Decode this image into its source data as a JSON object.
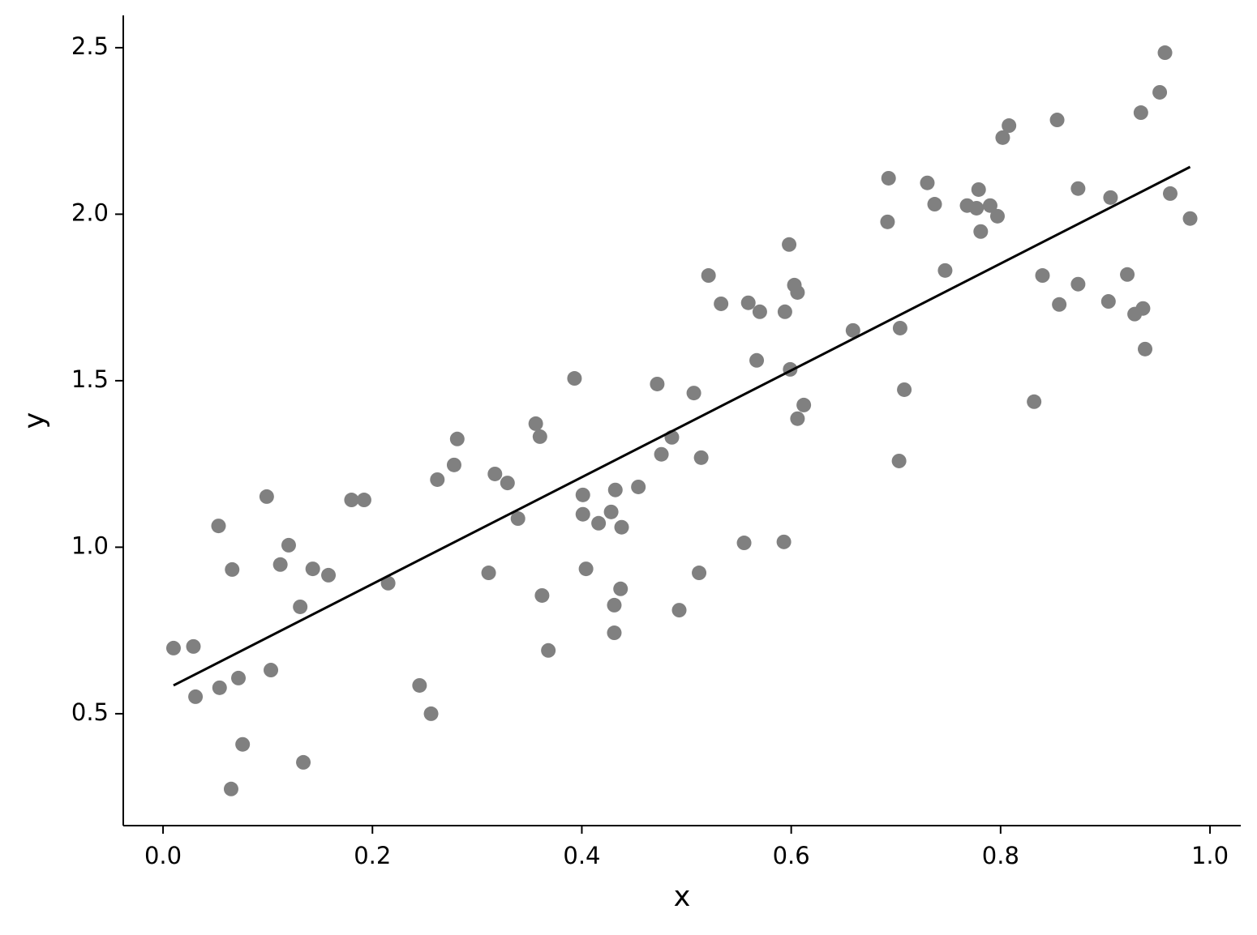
{
  "chart_data": {
    "type": "scatter",
    "xlabel": "x",
    "ylabel": "y",
    "xlim": [
      -0.038,
      1.0294
    ],
    "ylim": [
      0.164,
      2.597
    ],
    "xticks": [
      {
        "value": 0,
        "label": "0.0"
      },
      0.2,
      0.4,
      0.6,
      0.8,
      {
        "value": 1,
        "label": "1.0"
      }
    ],
    "yticks": [
      0.5,
      {
        "value": 1,
        "label": "1.0"
      },
      1.5,
      {
        "value": 2,
        "label": "2.0"
      },
      2.5
    ],
    "series": [
      {
        "type": "scatter",
        "color": "#808080",
        "x": [
          0.01,
          0.029,
          0.031,
          0.053,
          0.054,
          0.066,
          0.065,
          0.072,
          0.076,
          0.099,
          0.103,
          0.112,
          0.12,
          0.131,
          0.134,
          0.143,
          0.158,
          0.18,
          0.192,
          0.215,
          0.245,
          0.256,
          0.262,
          0.278,
          0.281,
          0.311,
          0.317,
          0.329,
          0.339,
          0.356,
          0.36,
          0.362,
          0.368,
          0.393,
          0.401,
          0.401,
          0.404,
          0.416,
          0.428,
          0.431,
          0.431,
          0.432,
          0.437,
          0.438,
          0.454,
          0.472,
          0.476,
          0.486,
          0.493,
          0.507,
          0.512,
          0.514,
          0.521,
          0.533,
          0.555,
          0.559,
          0.567,
          0.57,
          0.593,
          0.594,
          0.598,
          0.599,
          0.603,
          0.606,
          0.606,
          0.612,
          0.659,
          0.692,
          0.693,
          0.703,
          0.704,
          0.708,
          0.73,
          0.737,
          0.747,
          0.768,
          0.777,
          0.779,
          0.781,
          0.79,
          0.797,
          0.802,
          0.808,
          0.832,
          0.84,
          0.854,
          0.856,
          0.874,
          0.874,
          0.903,
          0.905,
          0.921,
          0.928,
          0.934,
          0.936,
          0.938,
          0.952,
          0.957,
          0.962,
          0.981
        ],
        "values": [
          0.697,
          0.702,
          0.551,
          1.064,
          0.578,
          0.933,
          0.274,
          0.607,
          0.408,
          1.152,
          0.631,
          0.948,
          1.006,
          0.821,
          0.354,
          0.935,
          0.916,
          1.142,
          1.142,
          0.892,
          0.585,
          0.5,
          1.203,
          1.247,
          1.325,
          0.923,
          1.22,
          1.193,
          1.086,
          1.371,
          1.332,
          0.855,
          0.69,
          1.507,
          1.157,
          1.099,
          0.935,
          1.072,
          1.106,
          0.826,
          0.743,
          1.172,
          0.875,
          1.06,
          1.181,
          1.49,
          1.279,
          1.33,
          0.811,
          1.463,
          0.923,
          1.269,
          1.816,
          1.731,
          1.013,
          1.734,
          1.561,
          1.707,
          1.016,
          1.707,
          1.909,
          1.534,
          1.787,
          1.765,
          1.386,
          1.427,
          1.651,
          1.977,
          2.108,
          1.259,
          1.658,
          1.473,
          2.094,
          2.03,
          1.831,
          2.026,
          2.018,
          2.074,
          1.948,
          2.026,
          1.994,
          2.23,
          2.266,
          1.437,
          1.816,
          2.283,
          1.729,
          2.077,
          1.79,
          1.738,
          2.05,
          1.819,
          1.7,
          2.305,
          1.717,
          1.595,
          2.366,
          2.485,
          2.062,
          1.987
        ]
      },
      {
        "type": "line",
        "color": "#000000",
        "x": [
          0.01,
          0.981
        ],
        "values": [
          0.585,
          2.142
        ]
      }
    ]
  }
}
